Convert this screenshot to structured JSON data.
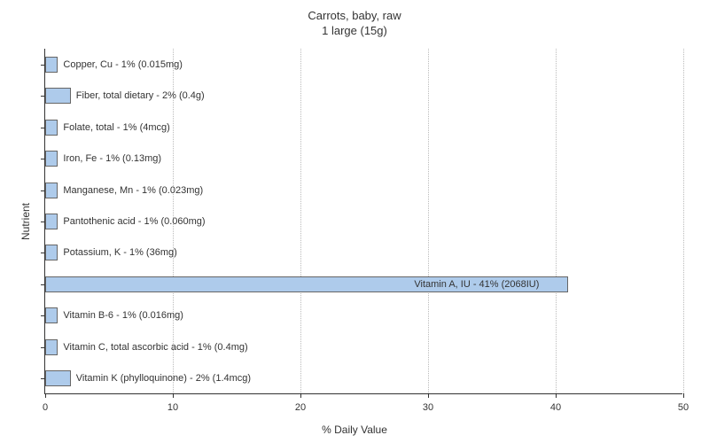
{
  "chart": {
    "type": "bar-horizontal",
    "title_line1": "Carrots, baby, raw",
    "title_line2": "1 large (15g)",
    "title_fontsize": 13,
    "y_axis_label": "Nutrient",
    "x_axis_label": "% Daily Value",
    "label_fontsize": 12,
    "xlim": [
      0,
      50
    ],
    "x_ticks": [
      0,
      10,
      20,
      30,
      40,
      50
    ],
    "background_color": "#ffffff",
    "grid_color": "#bbbbbb",
    "grid_style": "dotted",
    "axis_color": "#333333",
    "bar_color": "#aecbeb",
    "bar_border_color": "#666666",
    "text_color": "#333333",
    "tick_fontsize": 11,
    "bar_label_fontsize": 11,
    "nutrients": [
      {
        "label": "Copper, Cu - 1% (0.015mg)",
        "value": 1
      },
      {
        "label": "Fiber, total dietary - 2% (0.4g)",
        "value": 2
      },
      {
        "label": "Folate, total - 1% (4mcg)",
        "value": 1
      },
      {
        "label": "Iron, Fe - 1% (0.13mg)",
        "value": 1
      },
      {
        "label": "Manganese, Mn - 1% (0.023mg)",
        "value": 1
      },
      {
        "label": "Pantothenic acid - 1% (0.060mg)",
        "value": 1
      },
      {
        "label": "Potassium, K - 1% (36mg)",
        "value": 1
      },
      {
        "label": "Vitamin A, IU - 41% (2068IU)",
        "value": 41
      },
      {
        "label": "Vitamin B-6 - 1% (0.016mg)",
        "value": 1
      },
      {
        "label": "Vitamin C, total ascorbic acid - 1% (0.4mg)",
        "value": 1
      },
      {
        "label": "Vitamin K (phylloquinone) - 2% (1.4mcg)",
        "value": 2
      }
    ]
  }
}
